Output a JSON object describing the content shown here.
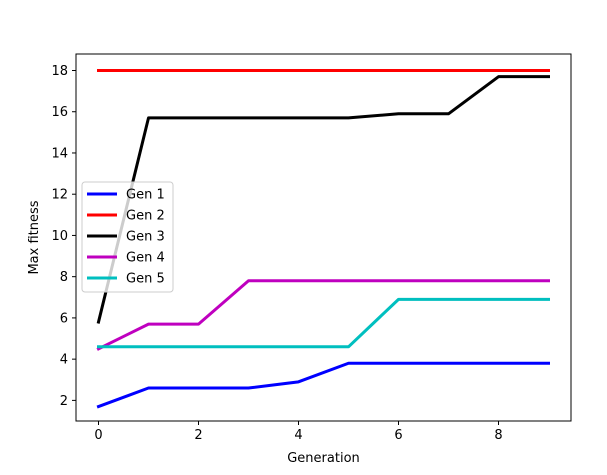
{
  "chart_data": {
    "type": "line",
    "title": "",
    "xlabel": "Generation",
    "ylabel": "Max fitness",
    "xlim": [
      -0.45,
      9.45
    ],
    "ylim": [
      1.0,
      18.8
    ],
    "xticks": [
      0,
      2,
      4,
      6,
      8
    ],
    "yticks": [
      2,
      4,
      6,
      8,
      10,
      12,
      14,
      16,
      18
    ],
    "grid": false,
    "legend_position": "center-left",
    "x": [
      0,
      1,
      2,
      3,
      4,
      5,
      6,
      7,
      8,
      9
    ],
    "series": [
      {
        "name": "Gen 1",
        "color": "#0000ff",
        "values": [
          1.7,
          2.6,
          2.6,
          2.6,
          2.9,
          3.8,
          3.8,
          3.8,
          3.8,
          3.8
        ]
      },
      {
        "name": "Gen 2",
        "color": "#ff0000",
        "values": [
          18.0,
          18.0,
          18.0,
          18.0,
          18.0,
          18.0,
          18.0,
          18.0,
          18.0,
          18.0
        ]
      },
      {
        "name": "Gen 3",
        "color": "#000000",
        "values": [
          5.8,
          15.7,
          15.7,
          15.7,
          15.7,
          15.7,
          15.9,
          15.9,
          17.7,
          17.7
        ]
      },
      {
        "name": "Gen 4",
        "color": "#bf00bf",
        "values": [
          4.5,
          5.7,
          5.7,
          7.8,
          7.8,
          7.8,
          7.8,
          7.8,
          7.8,
          7.8
        ]
      },
      {
        "name": "Gen 5",
        "color": "#00bfbf",
        "values": [
          4.6,
          4.6,
          4.6,
          4.6,
          4.6,
          4.6,
          6.9,
          6.9,
          6.9,
          6.9
        ]
      }
    ]
  }
}
